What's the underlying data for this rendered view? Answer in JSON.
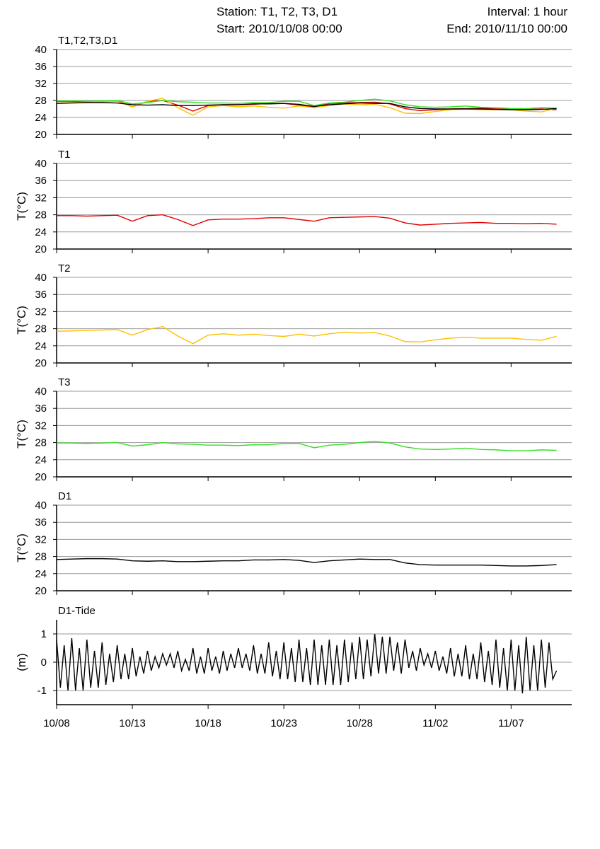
{
  "header": {
    "station": "Station: T1, T2, T3, D1",
    "start": "Start: 2010/10/08 00:00",
    "interval": "Interval: 1 hour",
    "end": "End: 2010/11/10 00:00"
  },
  "chart_data": [
    {
      "type": "line",
      "title": "T1,T2,T3,D1",
      "x": [
        0,
        1,
        2,
        3,
        4,
        5,
        6,
        7,
        8,
        9,
        10,
        11,
        12,
        13,
        14,
        15,
        16,
        17,
        18,
        19,
        20,
        21,
        22,
        23,
        24,
        25,
        26,
        27,
        28,
        29,
        30,
        31,
        32,
        33
      ],
      "series": [
        {
          "color": "#e00000",
          "values": [
            27.8,
            27.8,
            27.7,
            27.8,
            27.9,
            26.5,
            27.8,
            28.0,
            26.9,
            25.5,
            26.8,
            27.0,
            27.0,
            27.1,
            27.3,
            27.3,
            26.9,
            26.5,
            27.3,
            27.4,
            27.5,
            27.6,
            27.2,
            26.1,
            25.6,
            25.8,
            26.0,
            26.1,
            26.2,
            26.0,
            26.0,
            25.9,
            26.0,
            25.8
          ]
        },
        {
          "color": "#ffbf00",
          "values": [
            27.4,
            27.5,
            27.6,
            27.7,
            27.8,
            26.5,
            27.8,
            28.5,
            26.3,
            24.5,
            26.5,
            26.8,
            26.5,
            26.7,
            26.4,
            26.2,
            26.7,
            26.3,
            26.8,
            27.2,
            27.0,
            27.1,
            26.3,
            25.0,
            24.9,
            25.4,
            25.8,
            26.0,
            25.8,
            25.8,
            25.8,
            25.5,
            25.3,
            26.2
          ]
        },
        {
          "color": "#33e022",
          "values": [
            27.9,
            27.9,
            27.8,
            27.9,
            28.0,
            27.2,
            27.5,
            28.0,
            27.7,
            27.6,
            27.4,
            27.4,
            27.3,
            27.5,
            27.5,
            27.8,
            27.8,
            26.8,
            27.4,
            27.6,
            28.0,
            28.3,
            27.9,
            27.0,
            26.5,
            26.4,
            26.5,
            26.7,
            26.4,
            26.3,
            26.1,
            26.1,
            26.3,
            26.2
          ]
        },
        {
          "color": "#000000",
          "values": [
            27.3,
            27.4,
            27.5,
            27.5,
            27.4,
            27.0,
            26.9,
            27.0,
            26.8,
            26.8,
            26.9,
            27.0,
            27.0,
            27.2,
            27.2,
            27.3,
            27.1,
            26.6,
            27.0,
            27.2,
            27.4,
            27.3,
            27.3,
            26.5,
            26.1,
            26.0,
            26.0,
            26.0,
            26.0,
            25.9,
            25.8,
            25.8,
            25.9,
            26.1
          ]
        }
      ],
      "xlim": [
        0,
        34
      ],
      "ylim": [
        20,
        40
      ],
      "yticks": [
        20,
        24,
        28,
        32,
        36,
        40
      ],
      "grid": true
    },
    {
      "type": "line",
      "title": "T1",
      "ylabel": "T(°C)",
      "x": [
        0,
        1,
        2,
        3,
        4,
        5,
        6,
        7,
        8,
        9,
        10,
        11,
        12,
        13,
        14,
        15,
        16,
        17,
        18,
        19,
        20,
        21,
        22,
        23,
        24,
        25,
        26,
        27,
        28,
        29,
        30,
        31,
        32,
        33
      ],
      "series": [
        {
          "color": "#e00000",
          "values": [
            27.8,
            27.8,
            27.7,
            27.8,
            27.9,
            26.5,
            27.8,
            28.0,
            26.9,
            25.5,
            26.8,
            27.0,
            27.0,
            27.1,
            27.3,
            27.3,
            26.9,
            26.5,
            27.3,
            27.4,
            27.5,
            27.6,
            27.2,
            26.1,
            25.6,
            25.8,
            26.0,
            26.1,
            26.2,
            26.0,
            26.0,
            25.9,
            26.0,
            25.8
          ]
        }
      ],
      "xlim": [
        0,
        34
      ],
      "ylim": [
        20,
        40
      ],
      "yticks": [
        20,
        24,
        28,
        32,
        36,
        40
      ],
      "grid": true
    },
    {
      "type": "line",
      "title": "T2",
      "ylabel": "T(°C)",
      "x": [
        0,
        1,
        2,
        3,
        4,
        5,
        6,
        7,
        8,
        9,
        10,
        11,
        12,
        13,
        14,
        15,
        16,
        17,
        18,
        19,
        20,
        21,
        22,
        23,
        24,
        25,
        26,
        27,
        28,
        29,
        30,
        31,
        32,
        33
      ],
      "series": [
        {
          "color": "#ffbf00",
          "values": [
            27.4,
            27.5,
            27.6,
            27.7,
            27.8,
            26.5,
            27.8,
            28.5,
            26.3,
            24.5,
            26.5,
            26.8,
            26.5,
            26.7,
            26.4,
            26.2,
            26.7,
            26.3,
            26.8,
            27.2,
            27.0,
            27.1,
            26.3,
            25.0,
            24.9,
            25.4,
            25.8,
            26.0,
            25.8,
            25.8,
            25.8,
            25.5,
            25.3,
            26.2
          ]
        }
      ],
      "xlim": [
        0,
        34
      ],
      "ylim": [
        20,
        40
      ],
      "yticks": [
        20,
        24,
        28,
        32,
        36,
        40
      ],
      "grid": true
    },
    {
      "type": "line",
      "title": "T3",
      "ylabel": "T(°C)",
      "x": [
        0,
        1,
        2,
        3,
        4,
        5,
        6,
        7,
        8,
        9,
        10,
        11,
        12,
        13,
        14,
        15,
        16,
        17,
        18,
        19,
        20,
        21,
        22,
        23,
        24,
        25,
        26,
        27,
        28,
        29,
        30,
        31,
        32,
        33
      ],
      "series": [
        {
          "color": "#33e022",
          "values": [
            27.9,
            27.9,
            27.8,
            27.9,
            28.0,
            27.2,
            27.5,
            28.0,
            27.7,
            27.6,
            27.4,
            27.4,
            27.3,
            27.5,
            27.5,
            27.8,
            27.8,
            26.8,
            27.4,
            27.6,
            28.0,
            28.3,
            27.9,
            27.0,
            26.5,
            26.4,
            26.5,
            26.7,
            26.4,
            26.3,
            26.1,
            26.1,
            26.3,
            26.2
          ]
        }
      ],
      "xlim": [
        0,
        34
      ],
      "ylim": [
        20,
        40
      ],
      "yticks": [
        20,
        24,
        28,
        32,
        36,
        40
      ],
      "grid": true
    },
    {
      "type": "line",
      "title": "D1",
      "ylabel": "T(°C)",
      "x": [
        0,
        1,
        2,
        3,
        4,
        5,
        6,
        7,
        8,
        9,
        10,
        11,
        12,
        13,
        14,
        15,
        16,
        17,
        18,
        19,
        20,
        21,
        22,
        23,
        24,
        25,
        26,
        27,
        28,
        29,
        30,
        31,
        32,
        33
      ],
      "series": [
        {
          "color": "#000000",
          "values": [
            27.3,
            27.4,
            27.5,
            27.5,
            27.4,
            27.0,
            26.9,
            27.0,
            26.8,
            26.8,
            26.9,
            27.0,
            27.0,
            27.2,
            27.2,
            27.3,
            27.1,
            26.6,
            27.0,
            27.2,
            27.4,
            27.3,
            27.3,
            26.5,
            26.1,
            26.0,
            26.0,
            26.0,
            26.0,
            25.9,
            25.8,
            25.8,
            25.9,
            26.1
          ]
        }
      ],
      "xlim": [
        0,
        34
      ],
      "ylim": [
        20,
        40
      ],
      "yticks": [
        20,
        24,
        28,
        32,
        36,
        40
      ],
      "grid": true
    },
    {
      "type": "line",
      "title": "D1-Tide",
      "ylabel": "(m)",
      "x": [
        0,
        0.25,
        0.5,
        0.75,
        1,
        1.25,
        1.5,
        1.75,
        2,
        2.25,
        2.5,
        2.75,
        3,
        3.25,
        3.5,
        3.75,
        4,
        4.25,
        4.5,
        4.75,
        5,
        5.25,
        5.5,
        5.75,
        6,
        6.25,
        6.5,
        6.75,
        7,
        7.25,
        7.5,
        7.75,
        8,
        8.25,
        8.5,
        8.75,
        9,
        9.25,
        9.5,
        9.75,
        10,
        10.25,
        10.5,
        10.75,
        11,
        11.25,
        11.5,
        11.75,
        12,
        12.25,
        12.5,
        12.75,
        13,
        13.25,
        13.5,
        13.75,
        14,
        14.25,
        14.5,
        14.75,
        15,
        15.25,
        15.5,
        15.75,
        16,
        16.25,
        16.5,
        16.75,
        17,
        17.25,
        17.5,
        17.75,
        18,
        18.25,
        18.5,
        18.75,
        19,
        19.25,
        19.5,
        19.75,
        20,
        20.25,
        20.5,
        20.75,
        21,
        21.25,
        21.5,
        21.75,
        22,
        22.25,
        22.5,
        22.75,
        23,
        23.25,
        23.5,
        23.75,
        24,
        24.25,
        24.5,
        24.75,
        25,
        25.25,
        25.5,
        25.75,
        26,
        26.25,
        26.5,
        26.75,
        27,
        27.25,
        27.5,
        27.75,
        28,
        28.25,
        28.5,
        28.75,
        29,
        29.25,
        29.5,
        29.75,
        30,
        30.25,
        30.5,
        30.75,
        31,
        31.25,
        31.5,
        31.75,
        32,
        32.25,
        32.5,
        32.75,
        33
      ],
      "series": [
        {
          "color": "#000000",
          "values": [
            0.8,
            -0.9,
            0.6,
            -1.0,
            0.85,
            -1.0,
            0.5,
            -1.0,
            0.8,
            -0.9,
            0.4,
            -0.9,
            0.7,
            -0.8,
            0.3,
            -0.7,
            0.6,
            -0.6,
            0.3,
            -0.6,
            0.5,
            -0.5,
            0.2,
            -0.4,
            0.4,
            -0.3,
            0.2,
            -0.2,
            0.3,
            -0.1,
            0.3,
            -0.2,
            0.4,
            -0.3,
            0.1,
            -0.3,
            0.5,
            -0.4,
            0.2,
            -0.4,
            0.5,
            -0.3,
            0.2,
            -0.4,
            0.4,
            -0.3,
            0.3,
            -0.2,
            0.5,
            -0.2,
            0.3,
            -0.3,
            0.6,
            -0.4,
            0.3,
            -0.4,
            0.7,
            -0.5,
            0.4,
            -0.6,
            0.7,
            -0.6,
            0.5,
            -0.7,
            0.8,
            -0.7,
            0.5,
            -0.8,
            0.8,
            -0.8,
            0.6,
            -0.8,
            0.8,
            -0.8,
            0.6,
            -0.8,
            0.8,
            -0.7,
            0.7,
            -0.6,
            0.9,
            -0.6,
            0.8,
            -0.5,
            1.0,
            -0.4,
            0.9,
            -0.4,
            0.9,
            -0.3,
            0.7,
            -0.4,
            0.8,
            -0.2,
            0.4,
            -0.3,
            0.5,
            -0.1,
            0.3,
            -0.2,
            0.4,
            -0.3,
            0.2,
            -0.4,
            0.5,
            -0.5,
            0.3,
            -0.5,
            0.6,
            -0.6,
            0.3,
            -0.6,
            0.7,
            -0.7,
            0.4,
            -0.8,
            0.8,
            -0.9,
            0.5,
            -1.0,
            0.8,
            -1.0,
            0.6,
            -1.1,
            0.9,
            -1.0,
            0.6,
            -1.0,
            0.8,
            -0.9,
            0.7,
            -0.6,
            -0.3
          ]
        }
      ],
      "xlim": [
        0,
        34
      ],
      "ylim": [
        -1.5,
        1.5
      ],
      "yticks": [
        -1,
        0,
        1
      ],
      "grid": true,
      "xticks": [
        {
          "value": 0,
          "label": "10/08"
        },
        {
          "value": 5,
          "label": "10/13"
        },
        {
          "value": 10,
          "label": "10/18"
        },
        {
          "value": 15,
          "label": "10/23"
        },
        {
          "value": 20,
          "label": "10/28"
        },
        {
          "value": 25,
          "label": "11/02"
        },
        {
          "value": 30,
          "label": "11/07"
        }
      ]
    }
  ]
}
